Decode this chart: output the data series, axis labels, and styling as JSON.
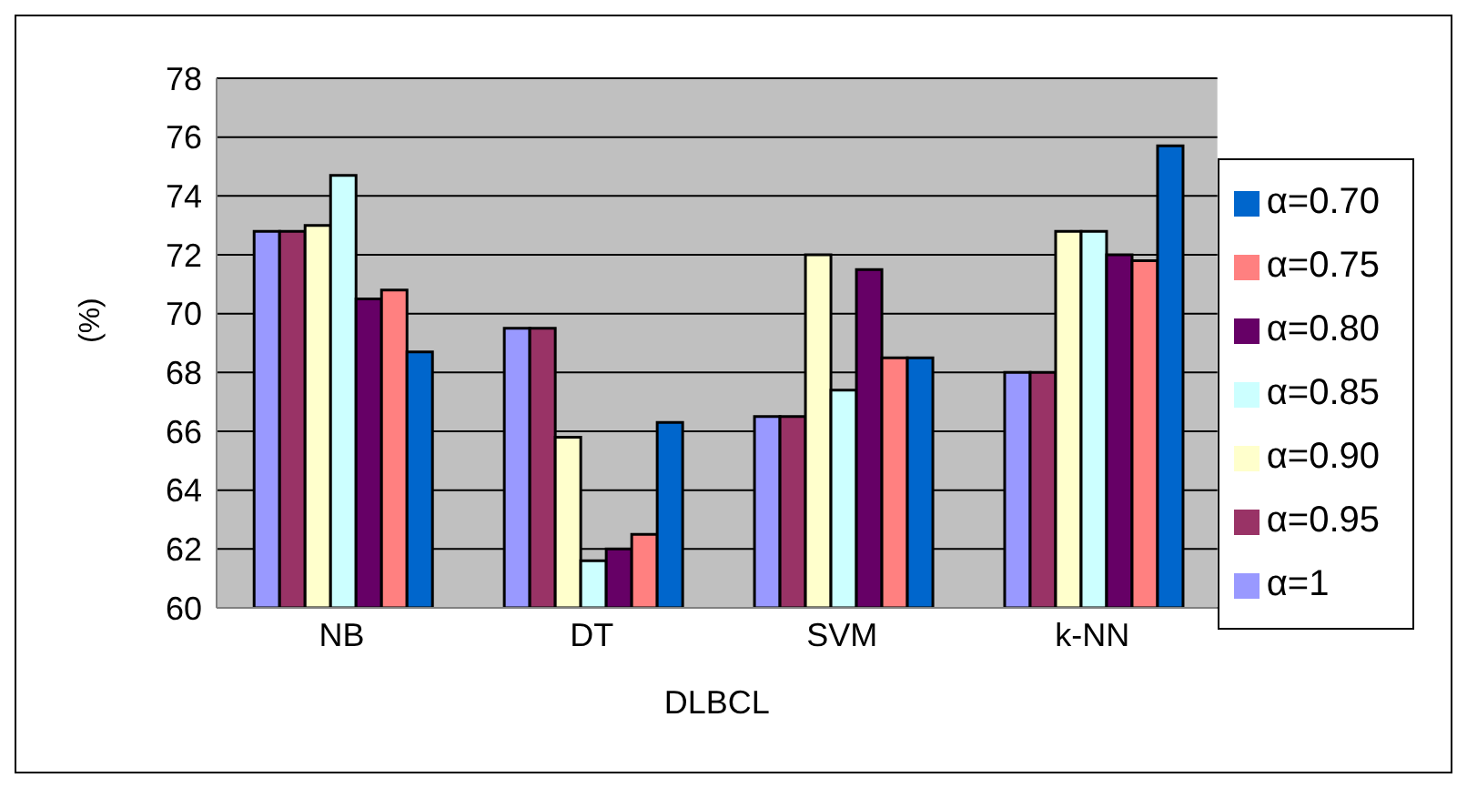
{
  "chart_data": {
    "type": "bar",
    "xlabel": "DLBCL",
    "ylabel": "(%)",
    "categories": [
      "NB",
      "DT",
      "SVM",
      "k-NN"
    ],
    "series": [
      {
        "name": "α=1",
        "color": "#9999ff",
        "values": [
          72.8,
          69.5,
          66.5,
          68.0
        ]
      },
      {
        "name": "α=0.95",
        "color": "#993366",
        "values": [
          72.8,
          69.5,
          66.5,
          68.0
        ]
      },
      {
        "name": "α=0.90",
        "color": "#ffffcc",
        "values": [
          73.0,
          65.8,
          72.0,
          72.8
        ]
      },
      {
        "name": "α=0.85",
        "color": "#ccffff",
        "values": [
          74.7,
          61.6,
          67.4,
          72.8
        ]
      },
      {
        "name": "α=0.80",
        "color": "#660066",
        "values": [
          70.5,
          62.0,
          71.5,
          72.0
        ]
      },
      {
        "name": "α=0.75",
        "color": "#ff8080",
        "values": [
          70.8,
          62.5,
          68.5,
          71.8
        ]
      },
      {
        "name": "α=0.70",
        "color": "#0066cc",
        "values": [
          68.7,
          66.3,
          68.5,
          75.7
        ]
      }
    ],
    "ylim": [
      60,
      78
    ],
    "yticks": [
      60,
      62,
      64,
      66,
      68,
      70,
      72,
      74,
      76,
      78
    ],
    "grid": "y",
    "legend": "right"
  }
}
